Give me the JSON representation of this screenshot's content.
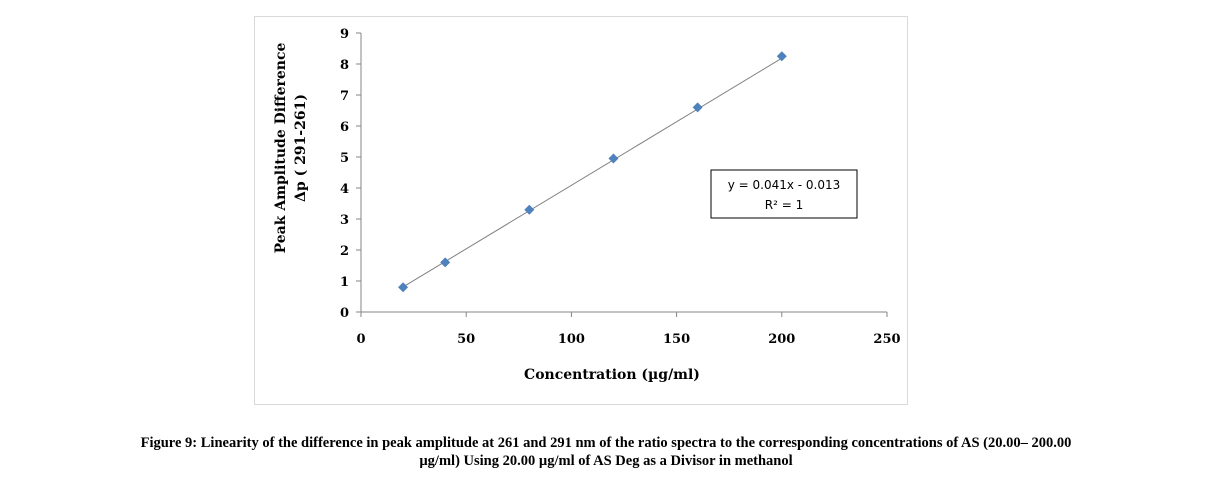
{
  "chart_data": {
    "type": "scatter",
    "xlabel": "Concentration (µg/ml)",
    "ylabel_line1": "Peak  Amplitude Difference",
    "ylabel_line2": "Δp ( 291-261)",
    "xlim": [
      0,
      250
    ],
    "ylim": [
      0,
      9
    ],
    "x_ticks": [
      0,
      50,
      100,
      150,
      200,
      250
    ],
    "y_ticks": [
      0,
      1,
      2,
      3,
      4,
      5,
      6,
      7,
      8,
      9
    ],
    "grid": false,
    "series": [
      {
        "x": [
          20,
          40,
          80,
          120,
          160,
          200
        ],
        "y": [
          0.8,
          1.6,
          3.3,
          4.95,
          6.6,
          8.25
        ],
        "marker": "diamond",
        "color": "#4f81bd"
      }
    ],
    "trendline": {
      "slope": 0.041,
      "intercept": -0.013,
      "x_range": [
        20,
        200
      ],
      "color": "#808080",
      "equation": "y = 0.041x - 0.013",
      "r2": "R² = 1"
    }
  },
  "caption": {
    "line1": "Figure 9: Linearity of the difference in peak amplitude at 261 and 291 nm of the ratio spectra to the corresponding concentrations of AS (20.00– 200.00",
    "line2": "µg/ml) Using 20.00 µg/ml of AS Deg as a Divisor in methanol"
  }
}
